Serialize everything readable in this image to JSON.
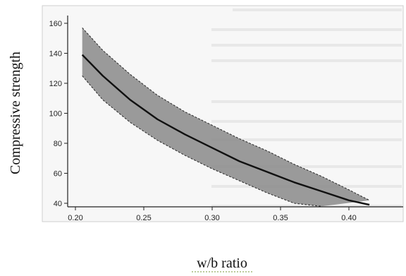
{
  "chart_data": {
    "type": "area",
    "xlabel": "w/b ratio",
    "ylabel": "Compressive strength",
    "xlim": [
      0.2,
      0.42
    ],
    "ylim": [
      38,
      165
    ],
    "x_ticks": [
      "0.20",
      "0.25",
      "0.30",
      "0.35",
      "0.40"
    ],
    "x_tick_values": [
      0.2,
      0.25,
      0.3,
      0.35,
      0.4
    ],
    "y_ticks": [
      "40",
      "60",
      "80",
      "100",
      "120",
      "140",
      "160"
    ],
    "y_tick_values": [
      40,
      60,
      80,
      100,
      120,
      140,
      160
    ],
    "grid": false,
    "series": [
      {
        "role": "mean",
        "x": [
          0.205,
          0.22,
          0.24,
          0.26,
          0.28,
          0.3,
          0.32,
          0.34,
          0.36,
          0.38,
          0.4,
          0.415
        ],
        "y": [
          139,
          125,
          109,
          96,
          86,
          77,
          68,
          61,
          54,
          48,
          42,
          39
        ]
      },
      {
        "role": "upper-bound",
        "x": [
          0.205,
          0.22,
          0.24,
          0.26,
          0.28,
          0.3,
          0.32,
          0.34,
          0.36,
          0.38,
          0.4,
          0.415
        ],
        "y": [
          157,
          142,
          126,
          112,
          101,
          92,
          83,
          75,
          66,
          58,
          49,
          42
        ]
      },
      {
        "role": "lower-bound",
        "x": [
          0.205,
          0.22,
          0.24,
          0.26,
          0.28,
          0.3,
          0.32,
          0.34,
          0.36,
          0.38
        ],
        "y": [
          125,
          109,
          94,
          82,
          72,
          63,
          55,
          47,
          40,
          38
        ]
      }
    ],
    "colors": {
      "band_fill": "#8a8a8a",
      "mean_line": "#111111",
      "bound_line": "#333333",
      "axis": "#222222"
    }
  }
}
